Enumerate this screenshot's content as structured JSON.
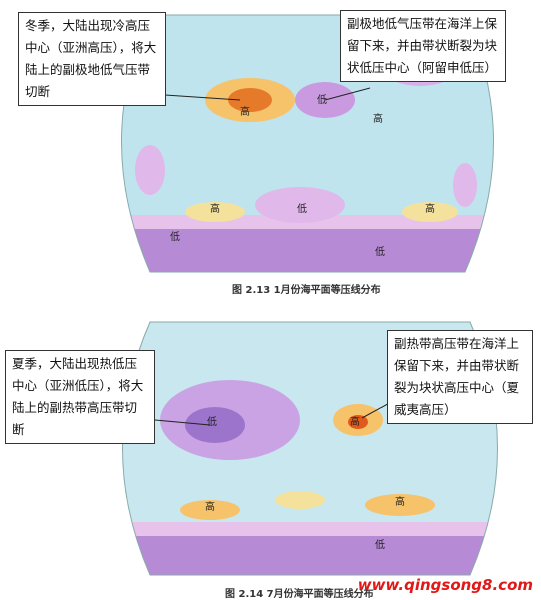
{
  "maps": [
    {
      "caption": "图 2.13  1月份海平面等压线分布",
      "callouts": [
        {
          "text": "冬季，大陆出现冷高压中心（亚洲高压），将大陆上的副极地低气压带切断"
        },
        {
          "text": "副极地低气压带在海洋上保留下来，并由带状断裂为块状低压中心（阿留申低压）"
        }
      ],
      "labels": [
        "高",
        "低",
        "高",
        "低",
        "高",
        "高",
        "低",
        "低"
      ]
    },
    {
      "caption": "图 2.14  7月份海平面等压线分布",
      "callouts": [
        {
          "text": "夏季，大陆出现热低压中心（亚洲低压），将大陆上的副热带高压带切断"
        },
        {
          "text": "副热带高压带在海洋上保留下来，并由带状断裂为块状高压中心（夏威夷高压）"
        }
      ],
      "labels": [
        "低",
        "高",
        "高",
        "高",
        "低"
      ]
    }
  ],
  "watermark": "www.qingsong8.com"
}
